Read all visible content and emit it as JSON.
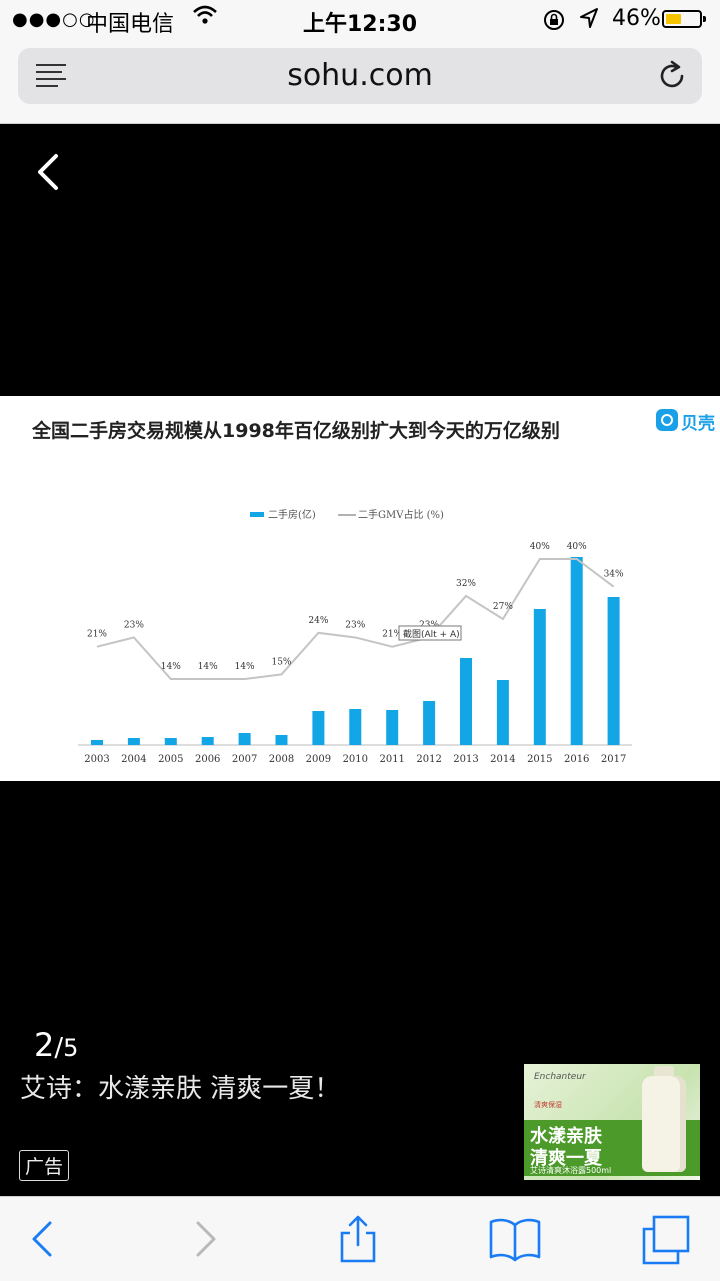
{
  "status_bar": {
    "signal": "●●●○○",
    "carrier": "中国电信",
    "time": "上午12:30",
    "battery_percent": "46%",
    "battery_level": 0.46
  },
  "browser": {
    "domain": "sohu.com"
  },
  "chart_panel": {
    "title": "全国二手房交易规模从1998年百亿级别扩大到今天的万亿级别",
    "brand": "贝壳"
  },
  "chart_data": {
    "type": "bar",
    "categories": [
      "2003",
      "2004",
      "2005",
      "2006",
      "2007",
      "2008",
      "2009",
      "2010",
      "2011",
      "2012",
      "2013",
      "2014",
      "2015",
      "2016",
      "2017"
    ],
    "series": [
      {
        "name": "二手房(亿)",
        "type": "bar",
        "color": "#12a6e6",
        "values": [
          0.5,
          0.7,
          0.7,
          0.8,
          1.2,
          1.0,
          3.4,
          3.6,
          3.5,
          4.4,
          8.7,
          6.5,
          13.6,
          18.8,
          14.8
        ]
      },
      {
        "name": "二手GMV占比 (%)",
        "type": "line",
        "color": "#c4c4c4",
        "values": [
          21,
          23,
          14,
          14,
          14,
          15,
          24,
          23,
          21,
          23,
          32,
          27,
          40,
          40,
          34
        ]
      }
    ],
    "point_labels": [
      "21%",
      "23%",
      "14%",
      "14%",
      "14%",
      "15%",
      "24%",
      "23%",
      "21%",
      "23%",
      "32%",
      "27%",
      "40%",
      "40%",
      "34%"
    ],
    "tooltip": "截图(Alt + A)"
  },
  "gallery": {
    "current": "2",
    "separator": "/",
    "total": "5",
    "caption": "艾诗：水漾亲肤 清爽一夏！",
    "ad_label": "广告"
  },
  "ad": {
    "brand": "Enchanteur",
    "line1": "水漾亲肤",
    "line2": "清爽一夏",
    "line3": "艾诗清爽沐浴露500ml",
    "subline": "清爽保湿"
  },
  "icons": {
    "menu": "reader-menu-icon",
    "reload": "reload-icon",
    "gallery_back": "chevron-left-icon",
    "toolbar_back": "back-arrow-icon",
    "toolbar_forward": "forward-arrow-icon",
    "share": "share-icon",
    "bookmarks": "bookmarks-book-icon",
    "tabs": "tabs-icon"
  },
  "colors": {
    "bar": "#12a6e6",
    "line": "#c4c4c4",
    "ios_blue": "#1a7cf5",
    "battery": "#f4c400"
  }
}
